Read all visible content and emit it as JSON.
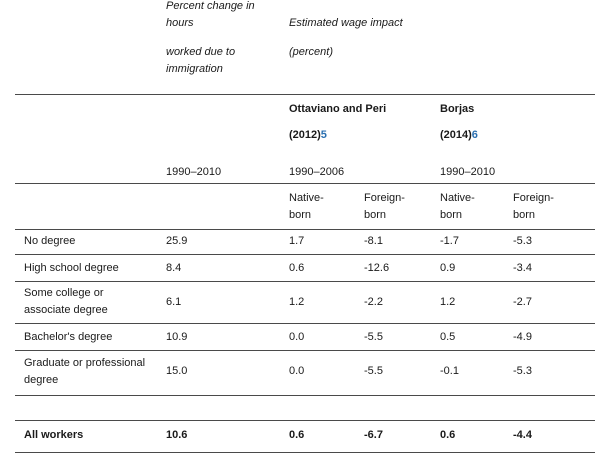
{
  "header": {
    "hours_title_line1": "Percent change in",
    "hours_title_line2": "hours",
    "hours_title_line3": "worked due to",
    "hours_title_line4": "immigration",
    "wage_title_line1": "Estimated wage impact",
    "wage_title_line2": "(percent)",
    "study_op_name": "Ottaviano and Peri",
    "study_op_year": "(2012)",
    "study_op_note": "5",
    "study_b_name": "Borjas",
    "study_b_year": "(2014)",
    "study_b_note": "6",
    "period_hours": "1990–2010",
    "period_op": "1990–2006",
    "period_b": "1990–2010",
    "native_line1": "Native-",
    "native_line2": "born",
    "foreign_line1": "Foreign-",
    "foreign_line2": "born"
  },
  "rows": [
    {
      "label1": "No degree",
      "label2": "",
      "hours": "25.9",
      "op_native": "1.7",
      "op_foreign": "-8.1",
      "b_native": "-1.7",
      "b_foreign": "-5.3"
    },
    {
      "label1": "High school degree",
      "label2": "",
      "hours": "8.4",
      "op_native": "0.6",
      "op_foreign": "-12.6",
      "b_native": "0.9",
      "b_foreign": "-3.4"
    },
    {
      "label1": "Some college or",
      "label2": "associate degree",
      "hours": "6.1",
      "op_native": "1.2",
      "op_foreign": "-2.2",
      "b_native": "1.2",
      "b_foreign": "-2.7"
    },
    {
      "label1": "Bachelor's degree",
      "label2": "",
      "hours": "10.9",
      "op_native": "0.0",
      "op_foreign": "-5.5",
      "b_native": "0.5",
      "b_foreign": "-4.9"
    },
    {
      "label1": "Graduate or professional",
      "label2": "degree",
      "hours": "15.0",
      "op_native": "0.0",
      "op_foreign": "-5.5",
      "b_native": "-0.1",
      "b_foreign": "-5.3"
    }
  ],
  "total": {
    "label": "All workers",
    "hours": "10.6",
    "op_native": "0.6",
    "op_foreign": "-6.7",
    "b_native": "0.6",
    "b_foreign": "-4.4"
  }
}
